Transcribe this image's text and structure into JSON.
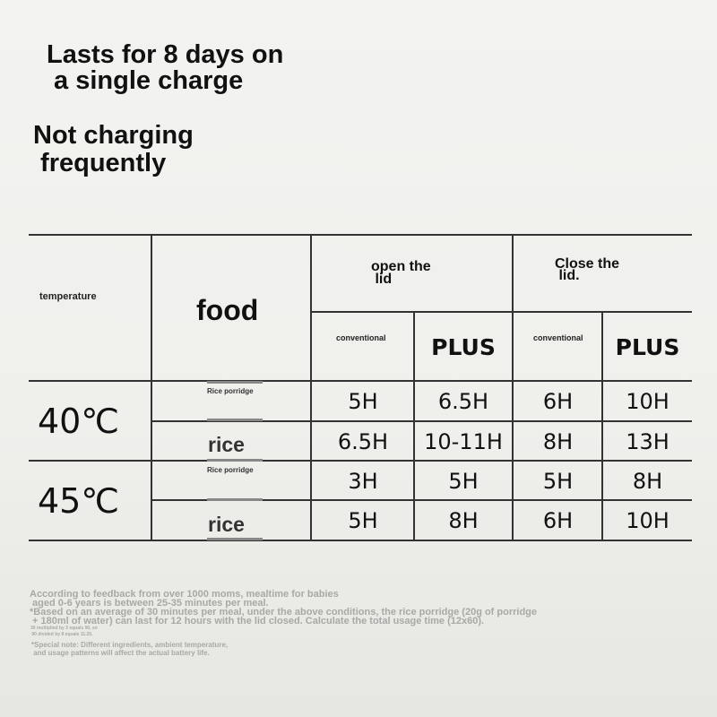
{
  "headline": {
    "line1": "Lasts for 8 days on",
    "line2": " a single charge"
  },
  "subheadline": {
    "line1": "Not charging",
    "line2": " frequently"
  },
  "table": {
    "col_temperature": "temperature",
    "col_food": "food",
    "group_open": {
      "line1": "open the",
      "line2": " lid"
    },
    "group_close": {
      "line1": "Close the",
      "line2": " lid."
    },
    "sub_conventional": "conventional",
    "sub_plus": "PLUS",
    "rows": [
      {
        "temp": "40℃",
        "food": "Rice porridge",
        "values": [
          "5H",
          "6.5H",
          "6H",
          "10H"
        ]
      },
      {
        "temp": "40℃",
        "food": "rice",
        "values": [
          "6.5H",
          "10-11H",
          "8H",
          "13H"
        ]
      },
      {
        "temp": "45℃",
        "food": "Rice porridge",
        "values": [
          "3H",
          "5H",
          "5H",
          "8H"
        ]
      },
      {
        "temp": "45℃",
        "food": "rice",
        "values": [
          "5H",
          "8H",
          "6H",
          "10H"
        ]
      }
    ]
  },
  "notes": {
    "n1": "According to feedback from over 1000 moms, mealtime for babies",
    "n2": " aged 0-6 years is between 25-35 minutes per meal.",
    "n3": "*Based on an average of 30 minutes per meal, under the above conditions, the rice porridge (20g of porridge",
    "n4": " + 180ml of water) can last for 12 hours with the lid closed. Calculate the total usage time (12x60).",
    "n5": "30 multiplied by 3 equals 90, so",
    "n6": " 90 divided by 8 equals 11.25.",
    "n7": "*Special note: Different ingredients, ambient temperature,",
    "n8": " and usage patterns will affect the actual battery life."
  }
}
